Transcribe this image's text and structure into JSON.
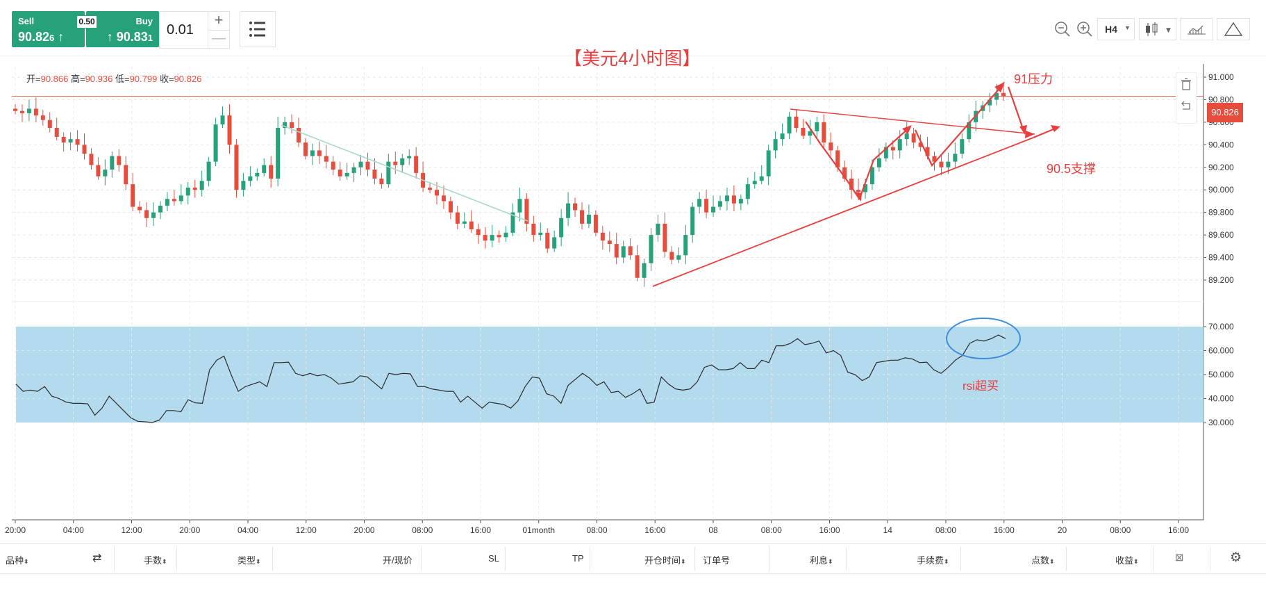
{
  "quote": {
    "sell_label": "Sell",
    "sell_price_main": "90.82",
    "sell_price_small": "6",
    "buy_label": "Buy",
    "buy_price_main": "90.83",
    "buy_price_small": "1",
    "spread": "0.50",
    "lot": "0.01",
    "plus": "+",
    "minus": "—"
  },
  "toolbar": {
    "timeframe": "H4",
    "icons": [
      "zoom-out-icon",
      "zoom-in-icon",
      "candlestick-icon",
      "indicator-icon",
      "drawing-triangle-icon",
      "list-icon"
    ]
  },
  "chart": {
    "title": "【美元4小时图】",
    "ohlc_open_label": "开=",
    "ohlc_open": "90.866",
    "ohlc_high_label": "高=",
    "ohlc_high": "90.936",
    "ohlc_low_label": "低=",
    "ohlc_low": "90.799",
    "ohlc_close_label": "收=",
    "ohlc_close": "90.826",
    "current_price": "90.826",
    "annotation_resistance": "91压力",
    "annotation_support": "90.5支撑",
    "annotation_rsi": "rsi超买",
    "price_ticks": [
      "91.000",
      "90.800",
      "90.600",
      "90.400",
      "90.200",
      "90.000",
      "89.800",
      "89.600",
      "89.400",
      "89.200"
    ],
    "rsi_ticks": [
      "70.000",
      "60.000",
      "50.000",
      "40.000",
      "30.000"
    ],
    "time_ticks": [
      "20:00",
      "04:00",
      "12:00",
      "20:00",
      "04:00",
      "12:00",
      "20:00",
      "08:00",
      "16:00",
      "01month",
      "08:00",
      "16:00",
      "08",
      "08:00",
      "16:00",
      "14",
      "08:00",
      "16:00",
      "20",
      "08:00",
      "16:00"
    ],
    "colors": {
      "up": "#26a17b",
      "down": "#e64d3d",
      "rsi_band": "#b4daee",
      "annotation": "#e83e3e",
      "circle": "#3d8ee0"
    }
  },
  "chart_data": [
    {
      "type": "candlestick",
      "title": "【美元4小时图】",
      "ylim": [
        89.1,
        91.15
      ],
      "y_ticks": [
        91.0,
        90.8,
        90.6,
        90.4,
        90.2,
        90.0,
        89.8,
        89.6,
        89.4,
        89.2
      ],
      "last": {
        "open": 90.866,
        "high": 90.936,
        "low": 90.799,
        "close": 90.826
      },
      "current_price": 90.826,
      "resistance": 91.0,
      "support": 90.5
    },
    {
      "type": "line",
      "name": "RSI",
      "ylim": [
        25,
        75
      ],
      "y_ticks": [
        70,
        60,
        50,
        40,
        30
      ],
      "band": [
        30,
        70
      ],
      "values": [
        46,
        43,
        43.5,
        43,
        45,
        41,
        40,
        38.5,
        38,
        38,
        37.8,
        33,
        36,
        41,
        38,
        35,
        32,
        30.5,
        30.3,
        30,
        31,
        35,
        35,
        34.5,
        39.5,
        38.2,
        38,
        52,
        56,
        57.7,
        50,
        43,
        45,
        46,
        47,
        45,
        55,
        55,
        55.2,
        50.5,
        49.5,
        50.5,
        49.5,
        50,
        48.5,
        46,
        46.5,
        47,
        49.5,
        49,
        46.5,
        44,
        50.5,
        50,
        50.5,
        50.3,
        45,
        45,
        44,
        43.5,
        43,
        43,
        38.5,
        41,
        38.5,
        36,
        38.5,
        38,
        37.5,
        36,
        39,
        45,
        49,
        48.5,
        42,
        41,
        38,
        45.5,
        48,
        50.5,
        48.5,
        45.5,
        47,
        42.5,
        43,
        40.5,
        42,
        44,
        38,
        38.5,
        49,
        46,
        44,
        43.5,
        44,
        47,
        53,
        54,
        52,
        52,
        52.5,
        55,
        52.5,
        52.5,
        56,
        55,
        62,
        62,
        63,
        65,
        62.5,
        63,
        64,
        59,
        60,
        58,
        51,
        50,
        47.5,
        49,
        55,
        55.5,
        56,
        56,
        57,
        56.5,
        55,
        55.2,
        52,
        50.5,
        53,
        56,
        58,
        63,
        64.5,
        64,
        65,
        66.5,
        65
      ]
    }
  ],
  "table_header": {
    "symbol": "品种",
    "lots": "手数",
    "type": "类型",
    "open_price": "开/现价",
    "sl": "SL",
    "tp": "TP",
    "open_time": "开仓时间",
    "order_no": "订单号",
    "interest": "利息",
    "fee": "手续费",
    "points": "点数",
    "profit": "收益"
  }
}
